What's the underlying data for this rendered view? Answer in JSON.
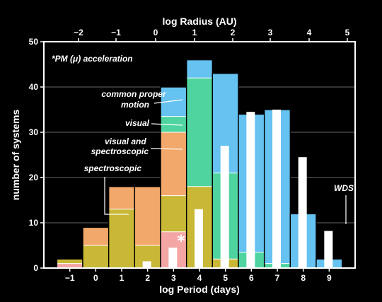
{
  "chart_data": {
    "type": "bar",
    "xlabel": "log Period (days)",
    "ylabel": "number of systems",
    "top_xlabel": "log Radius (AU)",
    "x_ticks": [
      "−1",
      "0",
      "1",
      "2",
      "3",
      "4",
      "5",
      "6",
      "7",
      "8",
      "9"
    ],
    "top_ticks": [
      "−2",
      "−1",
      "0",
      "1",
      "2",
      "3",
      "4",
      "5"
    ],
    "y_ticks": [
      "0",
      "10",
      "20",
      "30",
      "40",
      "50"
    ],
    "xlim": [
      -2,
      10
    ],
    "ylim": [
      0,
      50
    ],
    "grid": "horizontal",
    "note": "*PM (μ) acceleration",
    "star_label": "*",
    "wds_label": "WDS",
    "colors": {
      "spectroscopic": "#c8b836",
      "visual_and_spectroscopic": "#f2a86a",
      "visual": "#4fd4a0",
      "common_proper_motion": "#66c2f0",
      "pm_acceleration": "#f4a6a4",
      "wds": "#ffffff"
    },
    "series_labels": {
      "common_proper_motion": "common proper motion",
      "visual": "visual",
      "visual_and_spectroscopic": "visual and spectroscopic",
      "spectroscopic": "spectroscopic"
    },
    "bins": [
      {
        "x0": -1.5,
        "pm": 1,
        "spectroscopic": 1,
        "visual_and_spectroscopic": 0,
        "visual": 0,
        "common_proper_motion": 0,
        "total": 2
      },
      {
        "x0": -0.5,
        "pm": 0,
        "spectroscopic": 5,
        "visual_and_spectroscopic": 4,
        "visual": 0,
        "common_proper_motion": 0,
        "total": 9
      },
      {
        "x0": 0.5,
        "pm": 0,
        "spectroscopic": 13,
        "visual_and_spectroscopic": 5,
        "visual": 0,
        "common_proper_motion": 0,
        "total": 18
      },
      {
        "x0": 1.5,
        "pm": 0,
        "spectroscopic": 5,
        "visual_and_spectroscopic": 13,
        "visual": 0,
        "common_proper_motion": 0,
        "total": 18
      },
      {
        "x0": 2.5,
        "pm": 8,
        "spectroscopic": 8,
        "visual_and_spectroscopic": 14,
        "visual": 3.5,
        "common_proper_motion": 6.5,
        "total": 40
      },
      {
        "x0": 3.5,
        "pm": 0,
        "spectroscopic": 18,
        "visual_and_spectroscopic": 0,
        "visual": 24,
        "common_proper_motion": 4,
        "total": 46
      },
      {
        "x0": 4.5,
        "pm": 0,
        "spectroscopic": 2,
        "visual_and_spectroscopic": 0,
        "visual": 19,
        "common_proper_motion": 22,
        "total": 43
      },
      {
        "x0": 5.5,
        "pm": 0,
        "spectroscopic": 0,
        "visual_and_spectroscopic": 0,
        "visual": 3.5,
        "common_proper_motion": 30.5,
        "total": 34
      },
      {
        "x0": 6.5,
        "pm": 0,
        "spectroscopic": 0,
        "visual_and_spectroscopic": 0,
        "visual": 1,
        "common_proper_motion": 34,
        "total": 35
      },
      {
        "x0": 7.5,
        "pm": 0,
        "spectroscopic": 0,
        "visual_and_spectroscopic": 0,
        "visual": 0,
        "common_proper_motion": 12,
        "total": 12
      },
      {
        "x0": 8.5,
        "pm": 0,
        "spectroscopic": 0,
        "visual_and_spectroscopic": 0,
        "visual": 0,
        "common_proper_motion": 2,
        "total": 2
      }
    ],
    "wds": [
      {
        "x": 1.5,
        "value": 1.5
      },
      {
        "x": 2.5,
        "value": 4.5
      },
      {
        "x": 3.5,
        "value": 13
      },
      {
        "x": 4.5,
        "value": 27
      },
      {
        "x": 5.5,
        "value": 34.5
      },
      {
        "x": 6.5,
        "value": 35
      },
      {
        "x": 7.5,
        "value": 24.5
      },
      {
        "x": 8.5,
        "value": 8.2
      }
    ]
  }
}
